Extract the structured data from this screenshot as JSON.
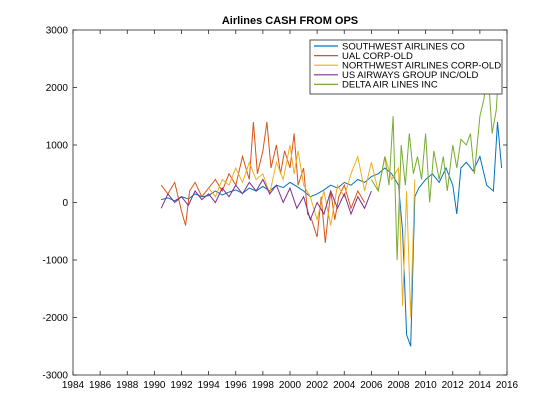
{
  "chart_data": {
    "type": "line",
    "title": "Airlines CASH FROM OPS",
    "xlabel": "",
    "ylabel": "",
    "xlim": [
      1984,
      2016
    ],
    "ylim": [
      -3000,
      3000
    ],
    "x_ticks": [
      1984,
      1986,
      1988,
      1990,
      1992,
      1994,
      1996,
      1998,
      2000,
      2002,
      2004,
      2006,
      2008,
      2010,
      2012,
      2014,
      2016
    ],
    "y_ticks": [
      -3000,
      -2000,
      -1000,
      0,
      1000,
      2000,
      3000
    ],
    "grid": false,
    "legend_position": "top-right",
    "series": [
      {
        "name": "SOUTHWEST AIRLINES CO",
        "color": "#0072BD",
        "points": [
          [
            1990.5,
            50
          ],
          [
            1991.0,
            80
          ],
          [
            1991.5,
            30
          ],
          [
            1992.0,
            100
          ],
          [
            1992.5,
            60
          ],
          [
            1993.0,
            150
          ],
          [
            1993.5,
            100
          ],
          [
            1994.0,
            120
          ],
          [
            1994.5,
            200
          ],
          [
            1995.0,
            130
          ],
          [
            1995.5,
            180
          ],
          [
            1996.0,
            220
          ],
          [
            1996.5,
            160
          ],
          [
            1997.0,
            250
          ],
          [
            1997.5,
            200
          ],
          [
            1998.0,
            280
          ],
          [
            1998.5,
            200
          ],
          [
            1999.0,
            300
          ],
          [
            1999.5,
            260
          ],
          [
            2000.0,
            350
          ],
          [
            2000.5,
            280
          ],
          [
            2001.0,
            200
          ],
          [
            2001.5,
            100
          ],
          [
            2002.0,
            150
          ],
          [
            2002.5,
            220
          ],
          [
            2003.0,
            300
          ],
          [
            2003.5,
            250
          ],
          [
            2004.0,
            350
          ],
          [
            2004.5,
            300
          ],
          [
            2005.0,
            400
          ],
          [
            2005.5,
            350
          ],
          [
            2006.0,
            450
          ],
          [
            2006.5,
            500
          ],
          [
            2007.0,
            600
          ],
          [
            2007.5,
            500
          ],
          [
            2008.0,
            300
          ],
          [
            2008.3,
            -500
          ],
          [
            2008.6,
            -2300
          ],
          [
            2008.9,
            -2500
          ],
          [
            2009.2,
            100
          ],
          [
            2009.5,
            250
          ],
          [
            2010.0,
            400
          ],
          [
            2010.5,
            500
          ],
          [
            2011.0,
            350
          ],
          [
            2011.5,
            600
          ],
          [
            2012.0,
            300
          ],
          [
            2012.3,
            -200
          ],
          [
            2012.6,
            600
          ],
          [
            2013.0,
            700
          ],
          [
            2013.5,
            550
          ],
          [
            2014.0,
            800
          ],
          [
            2014.5,
            300
          ],
          [
            2015.0,
            200
          ],
          [
            2015.3,
            1400
          ],
          [
            2015.6,
            600
          ]
        ]
      },
      {
        "name": "UAL CORP-OLD",
        "color": "#D95319",
        "points": [
          [
            1990.5,
            300
          ],
          [
            1991.0,
            150
          ],
          [
            1991.5,
            350
          ],
          [
            1992.0,
            -150
          ],
          [
            1992.3,
            -400
          ],
          [
            1992.6,
            200
          ],
          [
            1993.0,
            350
          ],
          [
            1993.5,
            100
          ],
          [
            1994.0,
            250
          ],
          [
            1994.5,
            400
          ],
          [
            1995.0,
            200
          ],
          [
            1995.5,
            500
          ],
          [
            1996.0,
            300
          ],
          [
            1996.5,
            800
          ],
          [
            1997.0,
            400
          ],
          [
            1997.3,
            1400
          ],
          [
            1997.6,
            500
          ],
          [
            1998.0,
            900
          ],
          [
            1998.3,
            1400
          ],
          [
            1998.6,
            600
          ],
          [
            1999.0,
            1000
          ],
          [
            1999.3,
            500
          ],
          [
            1999.6,
            900
          ],
          [
            2000.0,
            600
          ],
          [
            2000.3,
            1200
          ],
          [
            2000.6,
            300
          ],
          [
            2001.0,
            600
          ],
          [
            2001.3,
            -200
          ],
          [
            2001.6,
            -300
          ],
          [
            2002.0,
            -600
          ],
          [
            2002.3,
            100
          ],
          [
            2002.6,
            -700
          ],
          [
            2003.0,
            200
          ],
          [
            2003.3,
            -300
          ],
          [
            2003.6,
            100
          ],
          [
            2004.0,
            300
          ],
          [
            2004.5,
            -100
          ],
          [
            2005.0,
            200
          ],
          [
            2005.5,
            0
          ]
        ]
      },
      {
        "name": "NORTHWEST AIRLINES CORP-OLD",
        "color": "#EDB120",
        "points": [
          [
            1994.0,
            250
          ],
          [
            1994.5,
            100
          ],
          [
            1995.0,
            400
          ],
          [
            1995.5,
            300
          ],
          [
            1996.0,
            600
          ],
          [
            1996.5,
            350
          ],
          [
            1997.0,
            700
          ],
          [
            1997.5,
            400
          ],
          [
            1998.0,
            500
          ],
          [
            1998.5,
            150
          ],
          [
            1999.0,
            700
          ],
          [
            1999.5,
            400
          ],
          [
            2000.0,
            1000
          ],
          [
            2000.3,
            500
          ],
          [
            2000.6,
            900
          ],
          [
            2001.0,
            300
          ],
          [
            2001.5,
            100
          ],
          [
            2002.0,
            -300
          ],
          [
            2002.5,
            200
          ],
          [
            2003.0,
            -400
          ],
          [
            2003.5,
            300
          ],
          [
            2004.0,
            100
          ],
          [
            2004.5,
            500
          ],
          [
            2005.0,
            800
          ],
          [
            2005.5,
            200
          ],
          [
            2006.0,
            700
          ],
          [
            2006.5,
            200
          ],
          [
            2007.0,
            800
          ],
          [
            2007.5,
            400
          ],
          [
            2008.0,
            600
          ],
          [
            2008.3,
            -1800
          ],
          [
            2008.6,
            200
          ],
          [
            2008.9,
            -2000
          ],
          [
            2009.2,
            400
          ]
        ]
      },
      {
        "name": "US AIRWAYS GROUP INC/OLD",
        "color": "#7E2F8E",
        "points": [
          [
            1990.5,
            -100
          ],
          [
            1991.0,
            150
          ],
          [
            1991.5,
            0
          ],
          [
            1992.0,
            100
          ],
          [
            1992.5,
            -50
          ],
          [
            1993.0,
            200
          ],
          [
            1993.5,
            50
          ],
          [
            1994.0,
            150
          ],
          [
            1994.5,
            0
          ],
          [
            1995.0,
            250
          ],
          [
            1995.5,
            100
          ],
          [
            1996.0,
            300
          ],
          [
            1996.5,
            150
          ],
          [
            1997.0,
            350
          ],
          [
            1997.5,
            200
          ],
          [
            1998.0,
            400
          ],
          [
            1998.5,
            150
          ],
          [
            1999.0,
            300
          ],
          [
            1999.5,
            0
          ],
          [
            2000.0,
            250
          ],
          [
            2000.5,
            -100
          ],
          [
            2001.0,
            100
          ],
          [
            2001.5,
            -300
          ],
          [
            2002.0,
            0
          ],
          [
            2002.5,
            -200
          ],
          [
            2003.0,
            200
          ],
          [
            2003.5,
            -100
          ],
          [
            2004.0,
            150
          ],
          [
            2004.5,
            -200
          ],
          [
            2005.0,
            100
          ],
          [
            2005.5,
            -100
          ],
          [
            2006.0,
            200
          ]
        ]
      },
      {
        "name": "DELTA AIR LINES INC",
        "color": "#77AC30",
        "points": [
          [
            2006.0,
            400
          ],
          [
            2006.5,
            200
          ],
          [
            2007.0,
            800
          ],
          [
            2007.3,
            300
          ],
          [
            2007.6,
            1500
          ],
          [
            2007.9,
            -1000
          ],
          [
            2008.2,
            1000
          ],
          [
            2008.5,
            300
          ],
          [
            2008.8,
            1200
          ],
          [
            2009.1,
            500
          ],
          [
            2009.4,
            800
          ],
          [
            2009.7,
            400
          ],
          [
            2010.0,
            1200
          ],
          [
            2010.3,
            0
          ],
          [
            2010.6,
            900
          ],
          [
            2011.0,
            400
          ],
          [
            2011.3,
            800
          ],
          [
            2011.6,
            200
          ],
          [
            2012.0,
            1000
          ],
          [
            2012.3,
            600
          ],
          [
            2012.6,
            1100
          ],
          [
            2013.0,
            1000
          ],
          [
            2013.3,
            1200
          ],
          [
            2013.6,
            500
          ],
          [
            2014.0,
            1500
          ],
          [
            2014.3,
            1800
          ],
          [
            2014.6,
            2300
          ],
          [
            2014.9,
            1200
          ],
          [
            2015.2,
            1600
          ],
          [
            2015.5,
            2700
          ]
        ]
      }
    ]
  }
}
